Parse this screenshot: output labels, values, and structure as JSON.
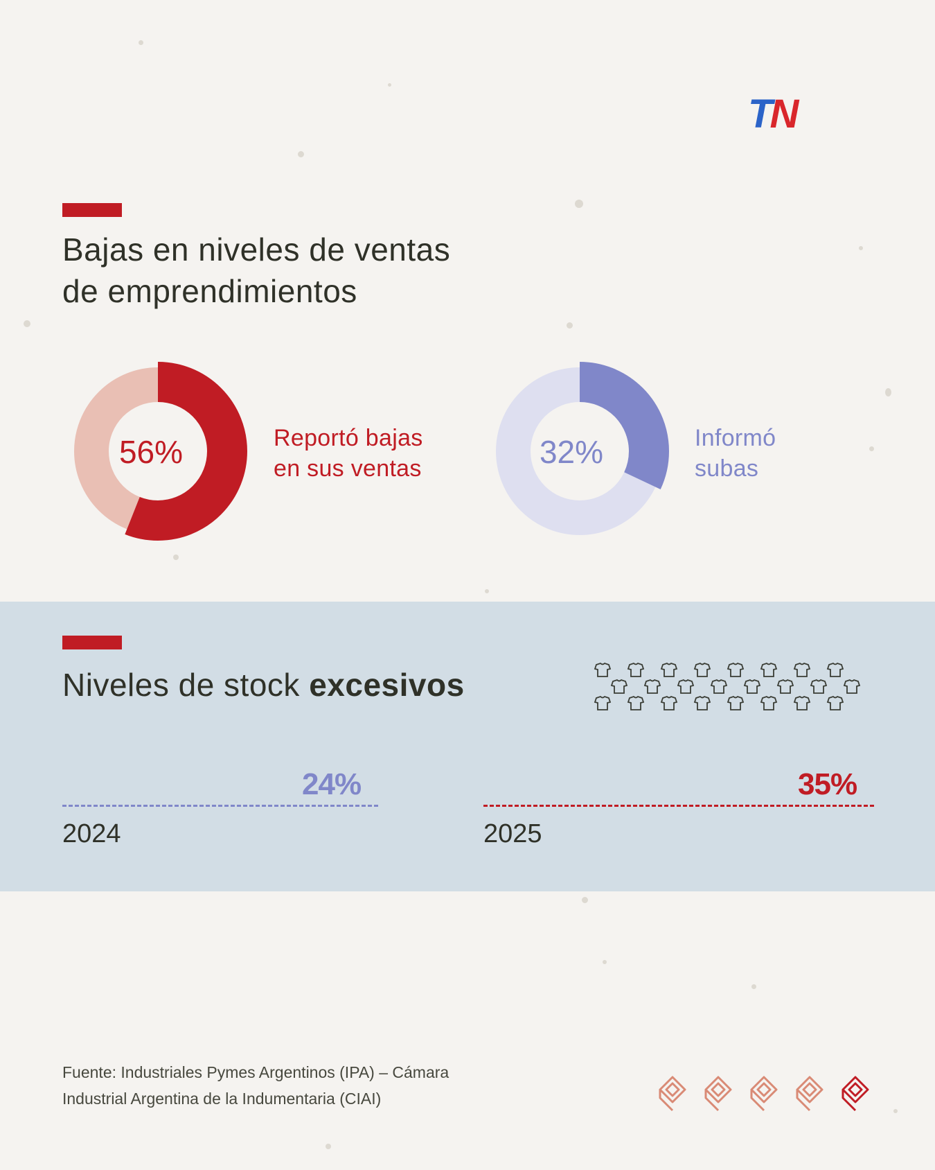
{
  "brand": {
    "logo_text": "TN",
    "colors": {
      "blue": "#2b63c8",
      "red": "#d9262b"
    }
  },
  "colors": {
    "accent_red": "#c01c24",
    "light_red": "#e9bfb4",
    "violet": "#8087c9",
    "light_violet": "#dedff0",
    "band": "#d2dde5",
    "text": "#2f3128"
  },
  "section1": {
    "title_line1": "Bajas en niveles de ventas",
    "title_line2": "de emprendimientos"
  },
  "section2": {
    "title_regular": "Niveles de stock ",
    "title_bold": "excesivos",
    "decoration_icon": "t-shirt-icon"
  },
  "chart_data": [
    {
      "type": "pie",
      "donut": true,
      "series": [
        {
          "label": "Reportó bajas\nen sus ventas",
          "value": 56,
          "value_label": "56%",
          "color": "#c01c24",
          "rest_color": "#e9bfb4"
        },
        {
          "label": "Informó\nsubas",
          "value": 32,
          "value_label": "32%",
          "color": "#8087c9",
          "rest_color": "#dedff0"
        }
      ]
    },
    {
      "type": "bar",
      "categories": [
        "2024",
        "2025"
      ],
      "values": [
        24,
        35
      ],
      "value_labels": [
        "24%",
        "35%"
      ],
      "colors": [
        "#8087c9",
        "#c01c24"
      ]
    }
  ],
  "footer": {
    "source_line1": "Fuente: Industriales Pymes Argentinos (IPA) – Cámara",
    "source_line2": "Industrial Argentina de la Indumentaria (CIAI)",
    "brand_icon": "thread-spool-icon",
    "brand_icon_count": 5
  }
}
